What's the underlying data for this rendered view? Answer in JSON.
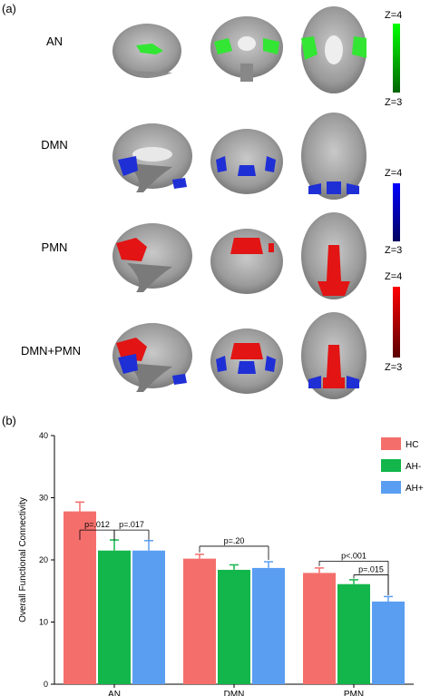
{
  "panel_a": {
    "label": "(a)",
    "rows": [
      {
        "label": "AN",
        "key": "an"
      },
      {
        "label": "DMN",
        "key": "dmn"
      },
      {
        "label": "PMN",
        "key": "pmn"
      },
      {
        "label": "DMN+PMN",
        "key": "both"
      }
    ],
    "colorbars": [
      {
        "top": "Z=4",
        "bottom": "Z=3",
        "from": "#00ff00",
        "to": "#006400"
      },
      {
        "top": "Z=4",
        "bottom": "Z=3",
        "from": "#0000ff",
        "to": "#000060"
      },
      {
        "top": "Z=4",
        "bottom": "Z=3",
        "from": "#ff0000",
        "to": "#5a0000"
      }
    ],
    "colors": {
      "an": "#33e633",
      "dmn": "#1f2fd6",
      "pmn": "#e21414"
    }
  },
  "panel_b": {
    "label": "(b)",
    "chart_data": {
      "type": "bar",
      "categories": [
        "AN",
        "DMN",
        "PMN"
      ],
      "ylabel": "Overall Functional Connectivity",
      "ylim": [
        0,
        40
      ],
      "yticks": [
        0,
        10,
        20,
        30,
        40
      ],
      "legend_position": "top-right",
      "series": [
        {
          "name": "HC",
          "color": "#f46f6c",
          "values": [
            27.8,
            20.2,
            17.9
          ],
          "errors": [
            1.5,
            0.7,
            0.8
          ]
        },
        {
          "name": "AH-",
          "color": "#12b64a",
          "values": [
            21.5,
            18.4,
            16.1
          ],
          "errors": [
            1.7,
            0.8,
            0.7
          ]
        },
        {
          "name": "AH+",
          "color": "#5a9ef2",
          "values": [
            21.5,
            18.7,
            13.3
          ],
          "errors": [
            1.6,
            1.0,
            0.8
          ]
        }
      ],
      "annotations": [
        {
          "text": "p=.012",
          "category": 0,
          "from_series": 0,
          "to_series": 1,
          "y": 24.8,
          "drop_from": 23.2,
          "drop_to": 23.2
        },
        {
          "text": "p=.017",
          "category": 0,
          "from_series": 1,
          "to_series": 2,
          "y": 24.8,
          "drop_from": 23.2,
          "drop_to": 23.2
        },
        {
          "text": "p=.20",
          "category": 1,
          "from_series": 0,
          "to_series": 2,
          "y": 22.2,
          "drop_from": 21.2,
          "drop_to": 20.0
        },
        {
          "text": "p<.001",
          "category": 2,
          "from_series": 0,
          "to_series": 2,
          "y": 19.8,
          "drop_from": 19.0,
          "drop_to": 14.3
        },
        {
          "text": "p=.015",
          "category": 2,
          "from_series": 1,
          "to_series": 2,
          "y": 17.6,
          "drop_from": 17.0,
          "drop_to": 14.3
        }
      ]
    }
  }
}
